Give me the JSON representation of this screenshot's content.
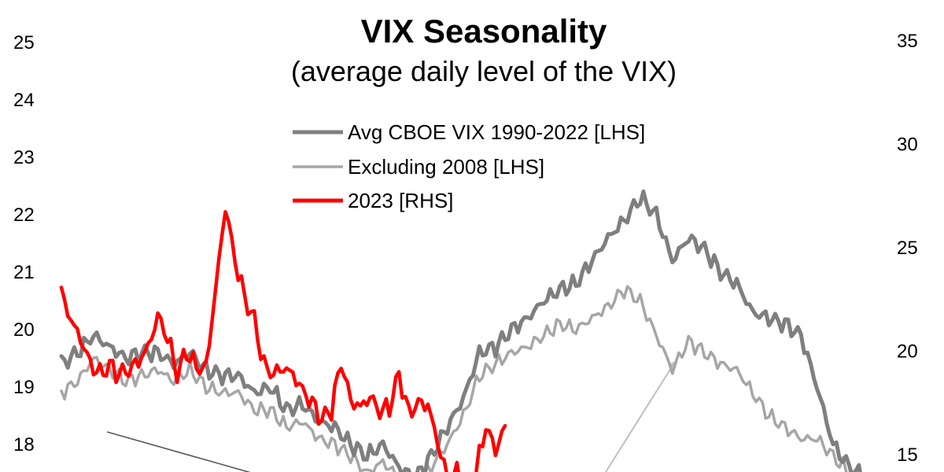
{
  "chart_data": {
    "type": "line",
    "title": "VIX Seasonality",
    "subtitle": "(average daily level of the VIX)",
    "x_range": [
      0,
      250
    ],
    "y_left": {
      "ticks": [
        18,
        19,
        20,
        21,
        22,
        23,
        24,
        25
      ],
      "range_visible": [
        17.5,
        25.3
      ]
    },
    "y_right": {
      "ticks": [
        15,
        20,
        25,
        30,
        35
      ],
      "range_visible": [
        13.7,
        35.6
      ]
    },
    "legend": {
      "position": "top-center"
    },
    "colors": {
      "avg": "#7f7f7f",
      "ex2008": "#a6a6a6",
      "y2023": "#ff0000",
      "arrow": "#bfbfbf",
      "trend": "#595959"
    },
    "series": [
      {
        "name": "Avg CBOE VIX 1990-2022 [LHS]",
        "axis": "left",
        "x": [
          0,
          5,
          10,
          15,
          20,
          25,
          30,
          35,
          40,
          45,
          50,
          55,
          60,
          65,
          70,
          75,
          80,
          85,
          90,
          95,
          100,
          105,
          110,
          115,
          120,
          125,
          130,
          135,
          140,
          145,
          150,
          155,
          160,
          165,
          170,
          175,
          180,
          185,
          190,
          195,
          200,
          205,
          210,
          215,
          220,
          225,
          230,
          235,
          240,
          245,
          250
        ],
        "values": [
          19.4,
          19.6,
          19.9,
          19.7,
          19.5,
          19.6,
          19.6,
          19.4,
          19.6,
          19.3,
          19.2,
          19.2,
          18.9,
          19.0,
          18.6,
          18.7,
          18.4,
          18.3,
          18.0,
          17.8,
          18.0,
          17.6,
          17.4,
          17.8,
          18.3,
          18.8,
          19.6,
          19.7,
          20.0,
          20.2,
          20.5,
          20.7,
          20.8,
          21.2,
          21.6,
          21.9,
          22.3,
          22.0,
          21.2,
          21.6,
          21.4,
          21.0,
          20.8,
          20.3,
          20.2,
          20.1,
          19.9,
          19.0,
          18.0,
          17.6,
          17.4
        ]
      },
      {
        "name": "Excluding 2008 [LHS]",
        "axis": "left",
        "x": [
          0,
          5,
          10,
          15,
          20,
          25,
          30,
          35,
          40,
          45,
          50,
          55,
          60,
          65,
          70,
          75,
          80,
          85,
          90,
          95,
          100,
          105,
          110,
          115,
          120,
          125,
          130,
          135,
          140,
          145,
          150,
          155,
          160,
          165,
          170,
          175,
          180,
          185,
          190,
          195,
          200,
          205,
          210,
          215,
          220,
          225,
          230,
          235,
          240,
          245,
          250
        ],
        "values": [
          18.9,
          19.1,
          19.5,
          19.3,
          19.1,
          19.2,
          19.3,
          19.1,
          19.3,
          19.0,
          18.9,
          18.9,
          18.6,
          18.6,
          18.3,
          18.4,
          18.1,
          18.0,
          17.8,
          17.5,
          17.7,
          17.4,
          17.3,
          17.6,
          18.0,
          18.5,
          19.2,
          19.4,
          19.6,
          19.7,
          19.9,
          20.1,
          20.0,
          20.2,
          20.4,
          20.7,
          20.5,
          19.9,
          19.3,
          19.8,
          19.6,
          19.4,
          19.3,
          18.9,
          18.5,
          18.3,
          18.1,
          18.1,
          17.8,
          17.5,
          17.4
        ]
      },
      {
        "name": "2023 [RHS]",
        "axis": "right",
        "x": [
          0,
          3,
          6,
          9,
          12,
          15,
          18,
          21,
          24,
          27,
          30,
          33,
          36,
          39,
          42,
          45,
          48,
          51,
          54,
          57,
          60,
          63,
          66,
          69,
          72,
          75,
          78,
          81,
          84,
          87,
          90,
          93,
          96,
          99,
          102,
          105,
          108,
          111,
          114,
          117,
          120,
          123,
          126,
          129,
          132,
          135,
          138
        ],
        "values": [
          22.8,
          21.5,
          20.6,
          19.4,
          18.9,
          19.3,
          18.9,
          19.1,
          19.5,
          20.2,
          21.7,
          20.7,
          18.9,
          20.0,
          19.2,
          19.2,
          23.0,
          27.0,
          24.4,
          22.6,
          21.5,
          19.3,
          18.9,
          19.2,
          18.9,
          18.1,
          17.5,
          16.7,
          17.2,
          19.5,
          17.6,
          17.3,
          17.8,
          17.1,
          17.3,
          18.9,
          17.0,
          17.5,
          17.4,
          15.6,
          13.9,
          14.1,
          13.6,
          14.2,
          16.4,
          15.2,
          16.4
        ]
      }
    ]
  }
}
